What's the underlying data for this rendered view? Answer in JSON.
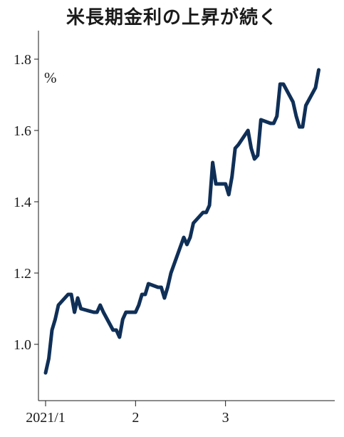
{
  "title": "米長期金利の上昇が続く",
  "chart_data": {
    "type": "line",
    "title": "米長期金利の上昇が続く",
    "unit": "%",
    "ylim": [
      0.88,
      1.86
    ],
    "yticks": [
      1.0,
      1.2,
      1.4,
      1.6,
      1.8
    ],
    "ytick_labels": [
      "1.0",
      "1.2",
      "1.4",
      "1.6",
      "1.8"
    ],
    "xticks": [
      {
        "date": "2021-01-04",
        "label": "2021/1"
      },
      {
        "date": "2021-02-01",
        "label": "2"
      },
      {
        "date": "2021-03-01",
        "label": "3"
      }
    ],
    "xlim": [
      "2021-01-01",
      "2021-03-31"
    ],
    "grid": false,
    "color": "#0f2f57",
    "series": [
      {
        "x": [
          "2021-01-04",
          "2021-01-05",
          "2021-01-06",
          "2021-01-07",
          "2021-01-08",
          "2021-01-11",
          "2021-01-12",
          "2021-01-13",
          "2021-01-14",
          "2021-01-15",
          "2021-01-19",
          "2021-01-20",
          "2021-01-21",
          "2021-01-22",
          "2021-01-25",
          "2021-01-26",
          "2021-01-27",
          "2021-01-28",
          "2021-01-29",
          "2021-02-01",
          "2021-02-02",
          "2021-02-03",
          "2021-02-04",
          "2021-02-05",
          "2021-02-08",
          "2021-02-09",
          "2021-02-10",
          "2021-02-11",
          "2021-02-12",
          "2021-02-16",
          "2021-02-17",
          "2021-02-18",
          "2021-02-19",
          "2021-02-22",
          "2021-02-23",
          "2021-02-24",
          "2021-02-25",
          "2021-02-26",
          "2021-03-01",
          "2021-03-02",
          "2021-03-03",
          "2021-03-04",
          "2021-03-05",
          "2021-03-08",
          "2021-03-09",
          "2021-03-10",
          "2021-03-11",
          "2021-03-12",
          "2021-03-15",
          "2021-03-16",
          "2021-03-17",
          "2021-03-18",
          "2021-03-19",
          "2021-03-22",
          "2021-03-23",
          "2021-03-24",
          "2021-03-25",
          "2021-03-26",
          "2021-03-29",
          "2021-03-30"
        ],
        "values": [
          0.92,
          0.96,
          1.04,
          1.07,
          1.11,
          1.14,
          1.14,
          1.09,
          1.13,
          1.1,
          1.09,
          1.09,
          1.11,
          1.09,
          1.04,
          1.04,
          1.02,
          1.07,
          1.09,
          1.09,
          1.11,
          1.14,
          1.14,
          1.17,
          1.16,
          1.16,
          1.13,
          1.16,
          1.2,
          1.3,
          1.28,
          1.3,
          1.34,
          1.37,
          1.37,
          1.39,
          1.51,
          1.45,
          1.45,
          1.42,
          1.47,
          1.55,
          1.56,
          1.6,
          1.55,
          1.52,
          1.53,
          1.63,
          1.62,
          1.62,
          1.64,
          1.73,
          1.73,
          1.68,
          1.64,
          1.61,
          1.61,
          1.67,
          1.72,
          1.77
        ]
      }
    ]
  }
}
